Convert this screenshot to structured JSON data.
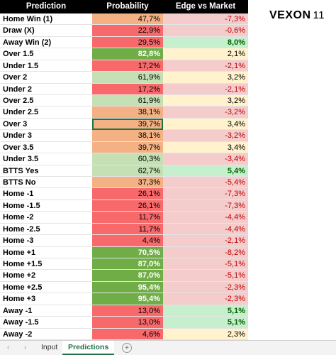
{
  "header": {
    "columns": [
      "Prediction",
      "Probability",
      "Edge vs Market"
    ]
  },
  "logo": {
    "name": "VEXON",
    "number": "11"
  },
  "table": {
    "rows": [
      [
        "Home Win (1)",
        "47,7%",
        "-7,3%"
      ],
      [
        "Draw (X)",
        "22,9%",
        "-0,6%"
      ],
      [
        "Away Win (2)",
        "29,5%",
        "8,0%"
      ],
      [
        "Over 1.5",
        "82,8%",
        "2,1%"
      ],
      [
        "Under 1.5",
        "17,2%",
        "-2,1%"
      ],
      [
        "Over 2",
        "61,9%",
        "3,2%"
      ],
      [
        "Under 2",
        "17,2%",
        "-2,1%"
      ],
      [
        "Over 2.5",
        "61,9%",
        "3,2%"
      ],
      [
        "Under 2.5",
        "38,1%",
        "-3,2%"
      ],
      [
        "Over 3",
        "39,7%",
        "3,4%"
      ],
      [
        "Under 3",
        "38,1%",
        "-3,2%"
      ],
      [
        "Over 3.5",
        "39,7%",
        "3,4%"
      ],
      [
        "Under 3.5",
        "60,3%",
        "-3,4%"
      ],
      [
        "BTTS Yes",
        "62,7%",
        "5,4%"
      ],
      [
        "BTTS No",
        "37,3%",
        "-5,4%"
      ],
      [
        "Home -1",
        "26,1%",
        "-7,3%"
      ],
      [
        "Home -1.5",
        "26,1%",
        "-7,3%"
      ],
      [
        "Home -2",
        "11,7%",
        "-4,4%"
      ],
      [
        "Home -2.5",
        "11,7%",
        "-4,4%"
      ],
      [
        "Home -3",
        "4,4%",
        "-2,1%"
      ],
      [
        "Home +1",
        "70,5%",
        "-8,2%"
      ],
      [
        "Home +1.5",
        "87,0%",
        "-5,1%"
      ],
      [
        "Home +2",
        "87,0%",
        "-5,1%"
      ],
      [
        "Home +2.5",
        "95,4%",
        "-2,3%"
      ],
      [
        "Home +3",
        "95,4%",
        "-2,3%"
      ],
      [
        "Away -1",
        "13,0%",
        "5,1%"
      ],
      [
        "Away -1.5",
        "13,0%",
        "5,1%"
      ],
      [
        "Away -2",
        "4,6%",
        "2,3%"
      ]
    ]
  },
  "tabs": [
    "Input",
    "Predictions"
  ]
}
